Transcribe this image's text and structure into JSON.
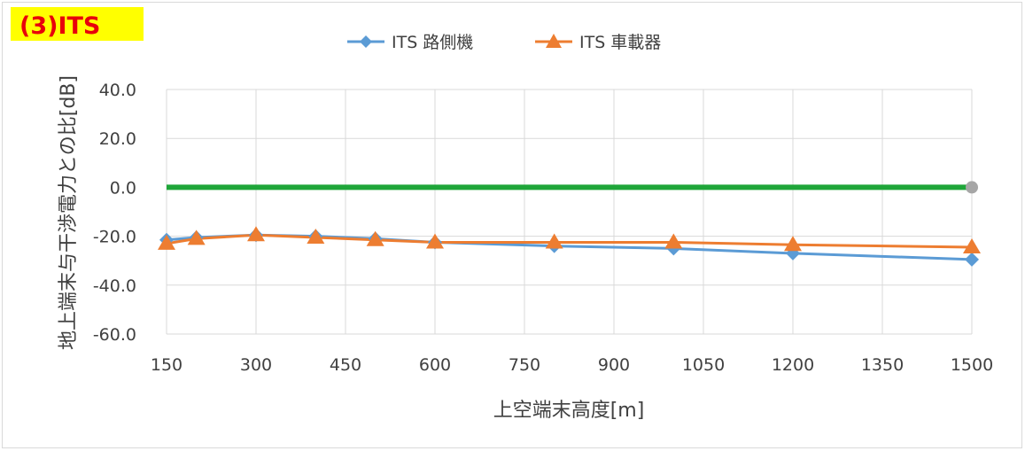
{
  "chart_data": {
    "type": "line",
    "title": "(3)ITS",
    "xlabel": "上空端末高度[m]",
    "ylabel": "地上端末与干渉電力との比[dB]",
    "x": [
      150,
      200,
      300,
      400,
      500,
      600,
      800,
      1000,
      1200,
      1500
    ],
    "xticks": [
      "150",
      "300",
      "450",
      "600",
      "750",
      "900",
      "1050",
      "1200",
      "1350",
      "1500"
    ],
    "xlim": [
      150,
      1500
    ],
    "yticks": [
      "40.0",
      "20.0",
      "0.0",
      "-20.0",
      "-40.0",
      "-60.0"
    ],
    "ylim": [
      -60,
      40
    ],
    "grid": true,
    "legend_position": "top",
    "series": [
      {
        "name": "ITS 路側機",
        "color": "#5b9bd5",
        "marker": "diamond",
        "values": [
          -21.5,
          -20.5,
          -19.5,
          -20.0,
          -21.0,
          -22.5,
          -24.0,
          -25.0,
          -27.0,
          -29.5
        ]
      },
      {
        "name": "ITS 車載器",
        "color": "#ed7d31",
        "marker": "triangle",
        "values": [
          -23.0,
          -21.0,
          -19.5,
          -20.5,
          -21.5,
          -22.5,
          -22.5,
          -22.5,
          -23.5,
          -24.5
        ]
      },
      {
        "name": "",
        "color": "#1fa639",
        "marker": "none",
        "values": [
          0,
          0,
          0,
          0,
          0,
          0,
          0,
          0,
          0,
          0
        ]
      }
    ],
    "endpoint_marker_color": "#a6a6a6",
    "title_badge_color": "#ffff00"
  }
}
